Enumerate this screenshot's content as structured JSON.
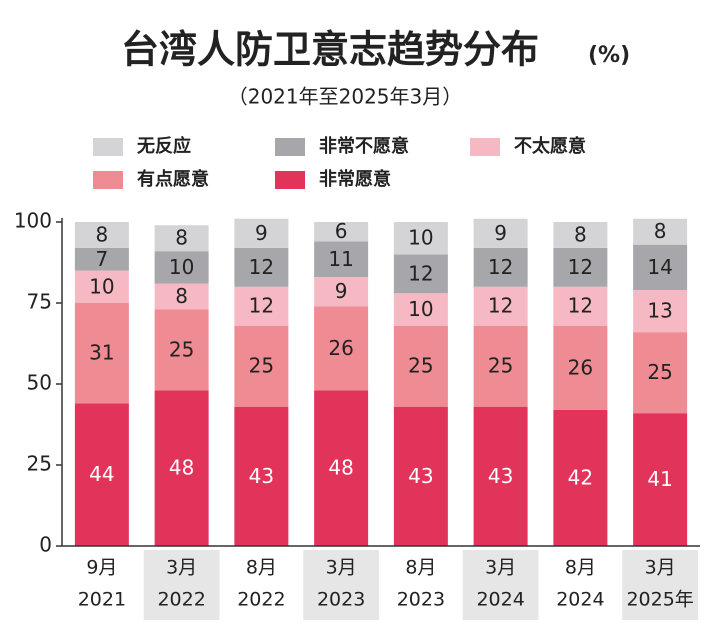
{
  "chart_data": {
    "type": "stacked_bar",
    "title": "台湾人防卫意志趋势分布",
    "unit": "(%)",
    "subtitle": "（2021年至2025年3月）",
    "categories": [
      [
        "9月",
        "2021"
      ],
      [
        "3月",
        "2022"
      ],
      [
        "8月",
        "2022"
      ],
      [
        "3月",
        "2023"
      ],
      [
        "8月",
        "2023"
      ],
      [
        "3月",
        "2024"
      ],
      [
        "8月",
        "2024"
      ],
      [
        "3月",
        "2025年"
      ]
    ],
    "series": [
      {
        "name": "非常愿意",
        "color": "#e2345a",
        "values": [
          44,
          48,
          43,
          48,
          43,
          43,
          42,
          41
        ]
      },
      {
        "name": "有点愿意",
        "color": "#ef8b93",
        "values": [
          31,
          25,
          25,
          26,
          25,
          25,
          26,
          25
        ]
      },
      {
        "name": "不太愿意",
        "color": "#f6b9c3",
        "values": [
          10,
          8,
          12,
          9,
          10,
          12,
          12,
          13
        ]
      },
      {
        "name": "非常不愿意",
        "color": "#a7a7ab",
        "values": [
          7,
          10,
          12,
          11,
          12,
          12,
          12,
          14
        ]
      },
      {
        "name": "无反应",
        "color": "#d4d4d6",
        "values": [
          8,
          8,
          9,
          6,
          10,
          9,
          8,
          8
        ]
      }
    ],
    "ylim": [
      0,
      100
    ],
    "yticks": [
      0,
      25,
      50,
      75,
      100
    ],
    "grid": false
  }
}
